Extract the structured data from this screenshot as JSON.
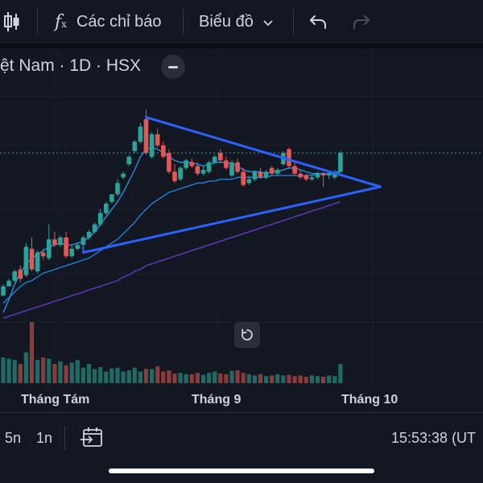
{
  "toolbar": {
    "indicators_label": "Các chỉ báo",
    "chart_type_label": "Biểu đồ"
  },
  "symbol": {
    "title": "ệt Nam · 1D · HSX"
  },
  "x_axis": {
    "labels": [
      "Tháng Tám",
      "Tháng 9",
      "Tháng 10"
    ]
  },
  "bottom_bar": {
    "range_5d": "5n",
    "range_1m": "1n",
    "clock": "15:53:38 (UT"
  },
  "colors": {
    "background": "#131722",
    "up": "#26a69a",
    "down": "#ef5350",
    "trendline": "#2962ff",
    "ma_short": "#2196f3",
    "ma_long": "#5e35b1"
  },
  "icons": {
    "candle_type": "candlestick-icon",
    "indicators": "fx-icon",
    "dropdown": "chevron-down-icon",
    "undo": "undo-icon",
    "redo": "redo-icon",
    "collapse": "minus-icon",
    "reset": "reset-icon",
    "goto_date": "calendar-goto-icon"
  },
  "chart_data": {
    "type": "candlestick",
    "title": "",
    "candles": [
      {
        "o": 14,
        "c": 19,
        "h": 20,
        "l": 14,
        "up": true
      },
      {
        "o": 19,
        "c": 22,
        "h": 23,
        "l": 19,
        "up": true
      },
      {
        "o": 22,
        "c": 27,
        "h": 28,
        "l": 21,
        "up": true
      },
      {
        "o": 28,
        "c": 23,
        "h": 30,
        "l": 21,
        "up": false
      },
      {
        "o": 25,
        "c": 40,
        "h": 42,
        "l": 24,
        "up": true
      },
      {
        "o": 39,
        "c": 28,
        "h": 45,
        "l": 27,
        "up": false
      },
      {
        "o": 27,
        "c": 37,
        "h": 38,
        "l": 26,
        "up": true
      },
      {
        "o": 37,
        "c": 35,
        "h": 39,
        "l": 33,
        "up": false
      },
      {
        "o": 34,
        "c": 44,
        "h": 52,
        "l": 33,
        "up": true
      },
      {
        "o": 44,
        "c": 41,
        "h": 48,
        "l": 40,
        "up": false
      },
      {
        "o": 41,
        "c": 45,
        "h": 46,
        "l": 40,
        "up": true
      },
      {
        "o": 45,
        "c": 35,
        "h": 48,
        "l": 34,
        "up": false
      },
      {
        "o": 35,
        "c": 39,
        "h": 41,
        "l": 34,
        "up": true
      },
      {
        "o": 39,
        "c": 41,
        "h": 42,
        "l": 38,
        "up": true
      },
      {
        "o": 41,
        "c": 45,
        "h": 46,
        "l": 40,
        "up": true
      },
      {
        "o": 45,
        "c": 48,
        "h": 49,
        "l": 44,
        "up": true
      },
      {
        "o": 48,
        "c": 52,
        "h": 53,
        "l": 47,
        "up": true
      },
      {
        "o": 52,
        "c": 58,
        "h": 60,
        "l": 51,
        "up": true
      },
      {
        "o": 58,
        "c": 63,
        "h": 64,
        "l": 57,
        "up": true
      },
      {
        "o": 64,
        "c": 68,
        "h": 68,
        "l": 63,
        "up": true
      },
      {
        "o": 68,
        "c": 74,
        "h": 76,
        "l": 67,
        "up": true
      },
      {
        "o": 77,
        "c": 79,
        "h": 80,
        "l": 76,
        "up": true
      },
      {
        "o": 84,
        "c": 88,
        "h": 89,
        "l": 83,
        "up": true
      },
      {
        "o": 91,
        "c": 96,
        "h": 97,
        "l": 90,
        "up": true
      },
      {
        "o": 96,
        "c": 104,
        "h": 106,
        "l": 95,
        "up": true
      },
      {
        "o": 108,
        "c": 90,
        "h": 113,
        "l": 89,
        "up": false
      },
      {
        "o": 88,
        "c": 100,
        "h": 101,
        "l": 87,
        "up": true
      },
      {
        "o": 100,
        "c": 94,
        "h": 103,
        "l": 93,
        "up": false
      },
      {
        "o": 94,
        "c": 88,
        "h": 96,
        "l": 87,
        "up": false
      },
      {
        "o": 90,
        "c": 80,
        "h": 92,
        "l": 79,
        "up": false
      },
      {
        "o": 80,
        "c": 75,
        "h": 84,
        "l": 74,
        "up": false
      },
      {
        "o": 76,
        "c": 82,
        "h": 83,
        "l": 75,
        "up": true
      },
      {
        "o": 82,
        "c": 86,
        "h": 87,
        "l": 81,
        "up": true
      },
      {
        "o": 85,
        "c": 83,
        "h": 87,
        "l": 82,
        "up": false
      },
      {
        "o": 83,
        "c": 79,
        "h": 85,
        "l": 78,
        "up": false
      },
      {
        "o": 79,
        "c": 81,
        "h": 83,
        "l": 78,
        "up": true
      },
      {
        "o": 80,
        "c": 85,
        "h": 86,
        "l": 79,
        "up": true
      },
      {
        "o": 85,
        "c": 88,
        "h": 89,
        "l": 84,
        "up": true
      },
      {
        "o": 90,
        "c": 86,
        "h": 92,
        "l": 85,
        "up": false
      },
      {
        "o": 86,
        "c": 82,
        "h": 88,
        "l": 81,
        "up": false
      },
      {
        "o": 78,
        "c": 85,
        "h": 86,
        "l": 77,
        "up": true
      },
      {
        "o": 85,
        "c": 80,
        "h": 87,
        "l": 79,
        "up": false
      },
      {
        "o": 80,
        "c": 73,
        "h": 82,
        "l": 72,
        "up": false
      },
      {
        "o": 74,
        "c": 76,
        "h": 78,
        "l": 73,
        "up": true
      },
      {
        "o": 76,
        "c": 80,
        "h": 81,
        "l": 75,
        "up": true
      },
      {
        "o": 80,
        "c": 77,
        "h": 82,
        "l": 76,
        "up": false
      },
      {
        "o": 77,
        "c": 80,
        "h": 81,
        "l": 76,
        "up": true
      },
      {
        "o": 82,
        "c": 79,
        "h": 83,
        "l": 78,
        "up": false
      },
      {
        "o": 79,
        "c": 81,
        "h": 82,
        "l": 78,
        "up": true
      },
      {
        "o": 84,
        "c": 90,
        "h": 91,
        "l": 83,
        "up": true
      },
      {
        "o": 92,
        "c": 83,
        "h": 93,
        "l": 82,
        "up": false
      },
      {
        "o": 83,
        "c": 79,
        "h": 85,
        "l": 78,
        "up": false
      },
      {
        "o": 79,
        "c": 77,
        "h": 81,
        "l": 76,
        "up": false
      },
      {
        "o": 78,
        "c": 76,
        "h": 79,
        "l": 75,
        "up": false
      },
      {
        "o": 76,
        "c": 77,
        "h": 78,
        "l": 75,
        "up": true
      },
      {
        "o": 77,
        "c": 79,
        "h": 80,
        "l": 76,
        "up": true
      },
      {
        "o": 79,
        "c": 78,
        "h": 80,
        "l": 72,
        "up": false
      },
      {
        "o": 78,
        "c": 79,
        "h": 80,
        "l": 76,
        "up": true
      },
      {
        "o": 77,
        "c": 80,
        "h": 81,
        "l": 76,
        "up": true
      },
      {
        "o": 80,
        "c": 90,
        "h": 91,
        "l": 79,
        "up": true
      }
    ],
    "volumes": [
      40,
      38,
      36,
      30,
      48,
      95,
      36,
      40,
      38,
      30,
      34,
      28,
      32,
      36,
      24,
      30,
      22,
      25,
      18,
      23,
      24,
      18,
      20,
      24,
      18,
      22,
      22,
      26,
      18,
      20,
      15,
      16,
      14,
      14,
      16,
      13,
      16,
      18,
      15,
      14,
      19,
      20,
      16,
      14,
      12,
      14,
      11,
      12,
      14,
      12,
      13,
      11,
      12,
      10,
      12,
      11,
      10,
      12,
      11,
      30
    ],
    "ylim": [
      0,
      120
    ],
    "volume_max": 100,
    "last_price": 90,
    "ma_short": [
      5,
      12,
      20,
      26,
      31,
      34,
      36,
      38,
      40,
      41,
      42,
      41,
      41,
      42,
      43,
      45,
      48,
      52,
      56,
      60,
      64,
      69,
      75,
      81,
      88,
      92,
      93,
      92,
      90,
      88,
      86,
      85,
      85,
      85,
      84,
      83,
      84,
      85,
      85,
      85,
      84,
      83,
      81,
      80,
      80,
      80,
      79,
      80,
      80,
      81,
      82,
      82,
      81,
      80,
      79,
      79,
      79,
      79,
      79,
      81
    ],
    "ma_mid": [
      10,
      13,
      16,
      19,
      21,
      22,
      24,
      26,
      27,
      28,
      29,
      30,
      31,
      32,
      33,
      34,
      36,
      38,
      40,
      42,
      44,
      47,
      50,
      53,
      57,
      60,
      63,
      65,
      67,
      69,
      70,
      71,
      72,
      73,
      74,
      74,
      75,
      75,
      76,
      76,
      76,
      77,
      77,
      77,
      77,
      77,
      77,
      78,
      78,
      78,
      78,
      78,
      78,
      78,
      78,
      79,
      79,
      79,
      79,
      80
    ],
    "ma_long": [
      2,
      3,
      4,
      5,
      6,
      7,
      8,
      9,
      10,
      11,
      12,
      13,
      14,
      15,
      16,
      17,
      18,
      19,
      20,
      21,
      22,
      24,
      25,
      27,
      28,
      30,
      31,
      32,
      33,
      34,
      35,
      36,
      37,
      38,
      39,
      40,
      41,
      42,
      43,
      44,
      45,
      46,
      47,
      48,
      49,
      50,
      51,
      52,
      53,
      54,
      55,
      56,
      57,
      58,
      59,
      60,
      61,
      62,
      63,
      64
    ],
    "triangle": {
      "apex_idx": 66,
      "apex_val": 72,
      "upper_start_idx": 25,
      "upper_start_val": 109,
      "lower_start_idx": 14,
      "lower_start_val": 37
    }
  }
}
